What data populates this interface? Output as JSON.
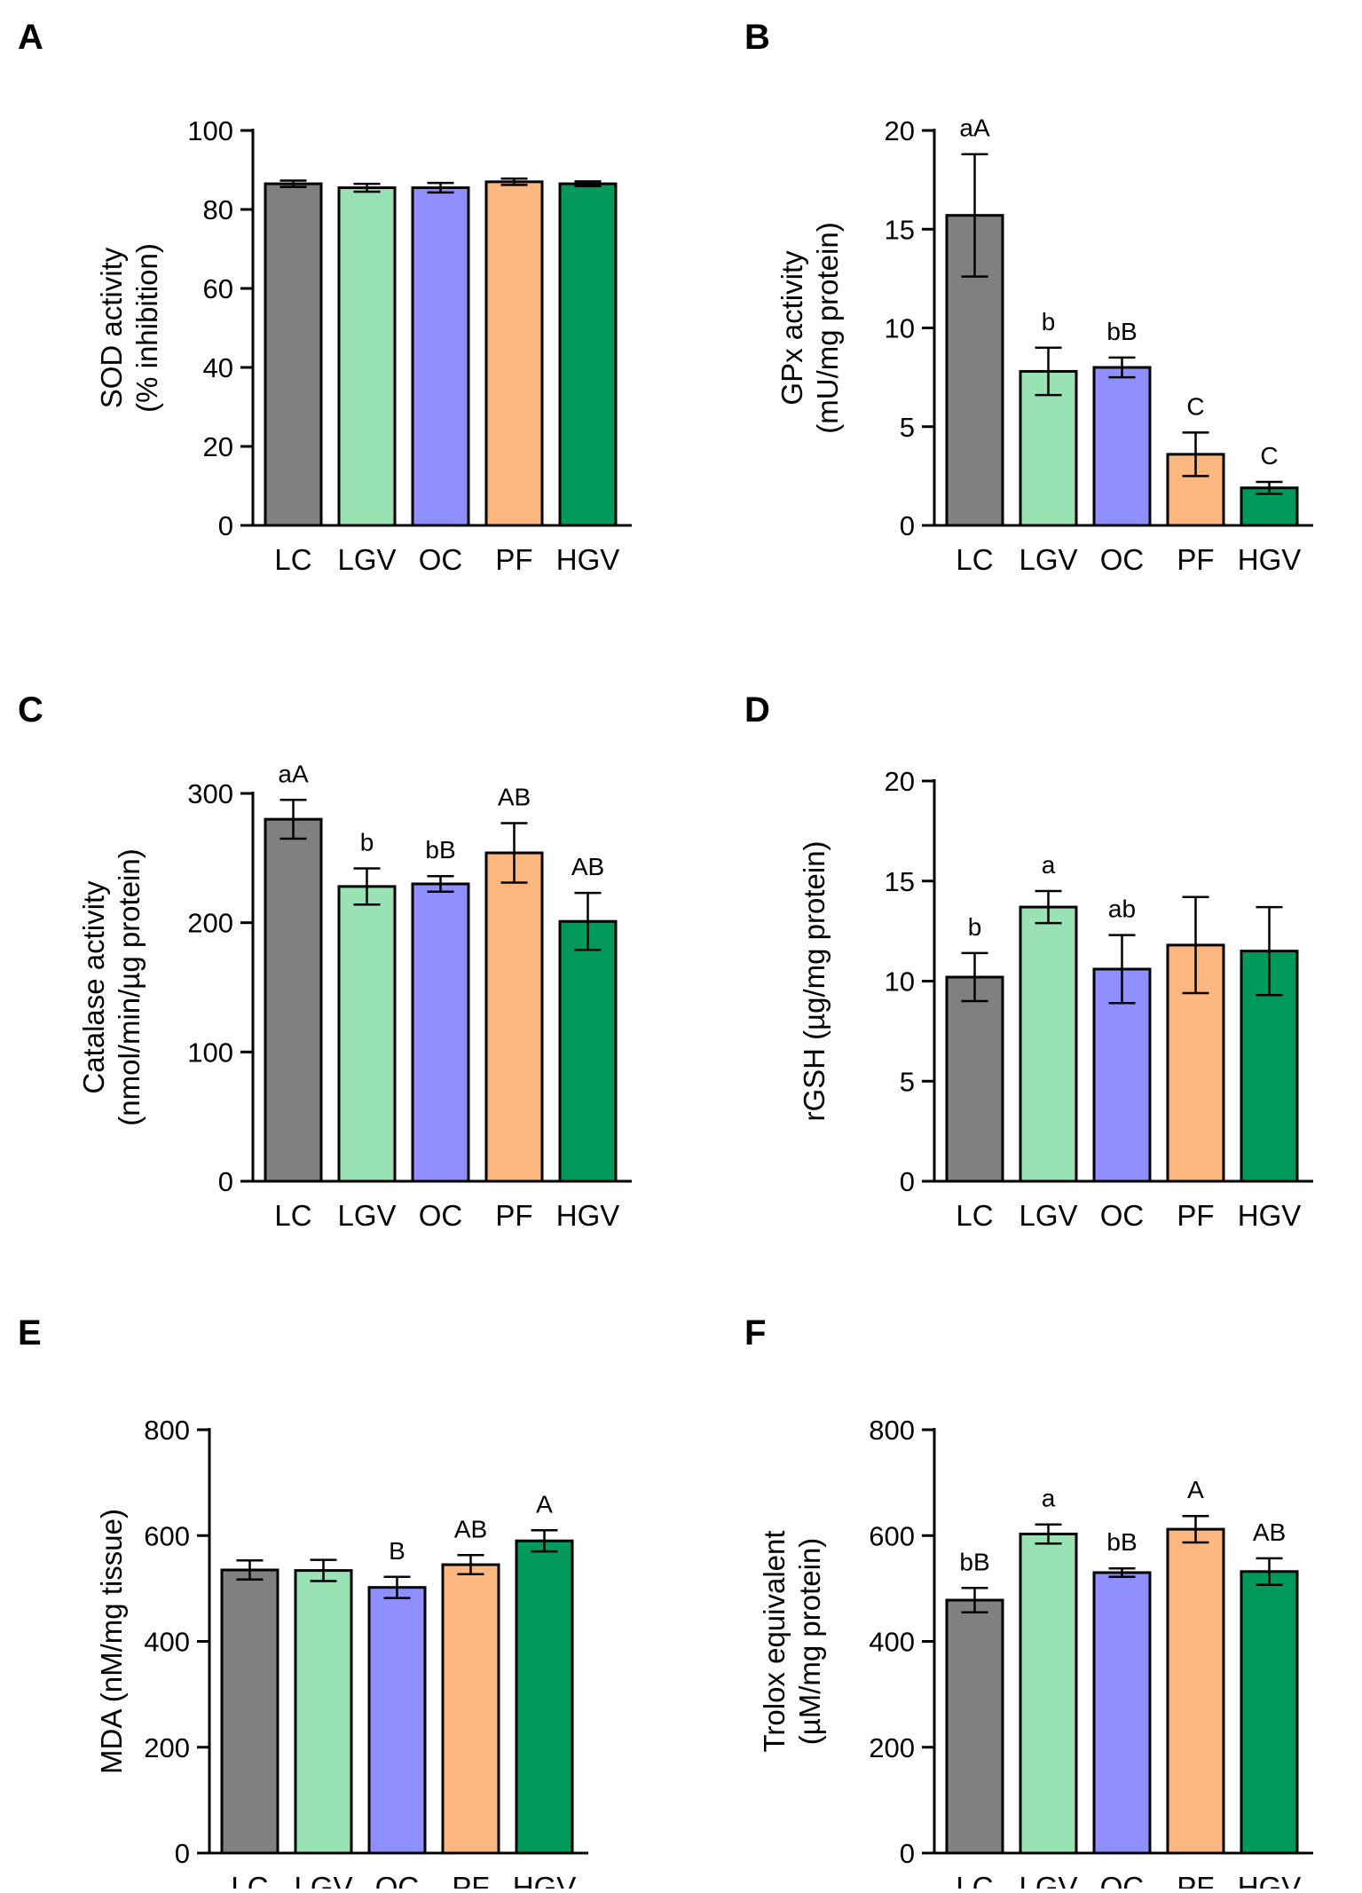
{
  "chart_data": [
    {
      "panel": "A",
      "type": "bar",
      "categories": [
        "LC",
        "LGV",
        "OC",
        "PF",
        "HGV"
      ],
      "values": [
        86.5,
        85.5,
        85.5,
        87.0,
        86.5
      ],
      "errors": [
        0.8,
        1.0,
        1.2,
        0.8,
        0.6
      ],
      "annotations": [
        "",
        "",
        "",
        "",
        ""
      ],
      "ylabel": [
        "SOD activity",
        "(% inhibition)"
      ],
      "ylim": [
        0,
        100
      ],
      "yticks": [
        0,
        20,
        40,
        60,
        80,
        100
      ],
      "colors": [
        "#808080",
        "#99e2b4",
        "#8f8fff",
        "#ffb780",
        "#00995c"
      ]
    },
    {
      "panel": "B",
      "type": "bar",
      "categories": [
        "LC",
        "LGV",
        "OC",
        "PF",
        "HGV"
      ],
      "values": [
        15.7,
        7.8,
        8.0,
        3.6,
        1.9
      ],
      "errors": [
        3.1,
        1.2,
        0.5,
        1.1,
        0.3
      ],
      "annotations": [
        "aA",
        "b",
        "bB",
        "C",
        "C"
      ],
      "ylabel": [
        "GPx activity",
        "(mU/mg protein)"
      ],
      "ylim": [
        0,
        20
      ],
      "yticks": [
        0,
        5,
        10,
        15,
        20
      ],
      "colors": [
        "#808080",
        "#99e2b4",
        "#8f8fff",
        "#ffb780",
        "#00995c"
      ]
    },
    {
      "panel": "C",
      "type": "bar",
      "categories": [
        "LC",
        "LGV",
        "OC",
        "PF",
        "HGV"
      ],
      "values": [
        280,
        228,
        230,
        254,
        201
      ],
      "errors": [
        15,
        14,
        6,
        23,
        22
      ],
      "annotations": [
        "aA",
        "b",
        "bB",
        "AB",
        "AB"
      ],
      "ylabel": [
        "Catalase activity",
        "(nmol/min/µg protein)"
      ],
      "ylim": [
        0,
        300
      ],
      "yticks": [
        0,
        100,
        200,
        300
      ],
      "colors": [
        "#808080",
        "#99e2b4",
        "#8f8fff",
        "#ffb780",
        "#00995c"
      ]
    },
    {
      "panel": "D",
      "type": "bar",
      "categories": [
        "LC",
        "LGV",
        "OC",
        "PF",
        "HGV"
      ],
      "values": [
        10.2,
        13.7,
        10.6,
        11.8,
        11.5
      ],
      "errors": [
        1.2,
        0.8,
        1.7,
        2.4,
        2.2
      ],
      "annotations": [
        "b",
        "a",
        "ab",
        "",
        ""
      ],
      "ylabel": [
        "rGSH (µg/mg protein)"
      ],
      "ylim": [
        0,
        20
      ],
      "yticks": [
        0,
        5,
        10,
        15,
        20
      ],
      "colors": [
        "#808080",
        "#99e2b4",
        "#8f8fff",
        "#ffb780",
        "#00995c"
      ]
    },
    {
      "panel": "E",
      "type": "bar",
      "categories": [
        "LC",
        "LGV",
        "OC",
        "PF",
        "HGV"
      ],
      "values": [
        535,
        534,
        502,
        545,
        590
      ],
      "errors": [
        18,
        20,
        20,
        18,
        20
      ],
      "annotations": [
        "",
        "",
        "B",
        "AB",
        "A"
      ],
      "ylabel": [
        "MDA (nM/mg tissue)"
      ],
      "ylim": [
        0,
        800
      ],
      "yticks": [
        0,
        200,
        400,
        600,
        800
      ],
      "colors": [
        "#808080",
        "#99e2b4",
        "#8f8fff",
        "#ffb780",
        "#00995c"
      ]
    },
    {
      "panel": "F",
      "type": "bar",
      "categories": [
        "LC",
        "LGV",
        "OC",
        "PF",
        "HGV"
      ],
      "values": [
        478,
        603,
        530,
        612,
        532
      ],
      "errors": [
        23,
        18,
        8,
        25,
        25
      ],
      "annotations": [
        "bB",
        "a",
        "bB",
        "A",
        "AB"
      ],
      "ylabel": [
        "Trolox equivalent",
        "(µM/mg protein)"
      ],
      "ylim": [
        0,
        800
      ],
      "yticks": [
        0,
        200,
        400,
        600,
        800
      ],
      "colors": [
        "#808080",
        "#99e2b4",
        "#8f8fff",
        "#ffb780",
        "#00995c"
      ]
    }
  ]
}
